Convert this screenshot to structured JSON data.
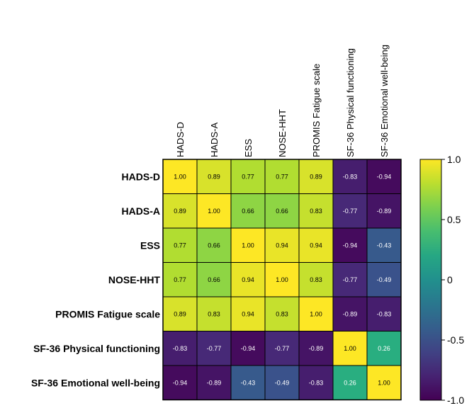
{
  "chart_data": {
    "type": "heatmap",
    "title": "",
    "columns": [
      "HADS-D",
      "HADS-A",
      "ESS",
      "NOSE-HHT",
      "PROMIS Fatigue scale",
      "SF-36 Physical functioning",
      "SF-36 Emotional well-being"
    ],
    "rows": [
      "HADS-D",
      "HADS-A",
      "ESS",
      "NOSE-HHT",
      "PROMIS Fatigue scale",
      "SF-36 Physical functioning",
      "SF-36 Emotional well-being"
    ],
    "value_labels": [
      [
        "1.00",
        "0.89",
        "0.77",
        "0.77",
        "0.89",
        "-0.83",
        "-0.94"
      ],
      [
        "0.89",
        "1.00",
        "0.66",
        "0.66",
        "0.83",
        "-0.77",
        "-0.89"
      ],
      [
        "0.77",
        "0.66",
        "1.00",
        "0.94",
        "0.94",
        "-0.94",
        "-0.43"
      ],
      [
        "0.77",
        "0.66",
        "0.94",
        "1.00",
        "0.83",
        "-0.77",
        "-0.49"
      ],
      [
        "0.89",
        "0.83",
        "0.94",
        "0.83",
        "1.00",
        "-0.89",
        "-0.83"
      ],
      [
        "-0.83",
        "-0.77",
        "-0.94",
        "-0.77",
        "-0.89",
        "1.00",
        "0.26"
      ],
      [
        "-0.94",
        "-0.89",
        "-0.43",
        "-0.49",
        "-0.83",
        "0.26",
        "1.00"
      ]
    ],
    "colorbar": {
      "range": [
        -1.0,
        1.0
      ],
      "colormap": "viridis",
      "tick_values": [
        1.0,
        0.5,
        0,
        -0.5,
        -1.0
      ],
      "tick_labels": [
        "1.0",
        "0.5",
        "0",
        "-0.5",
        "-1.0"
      ]
    },
    "legend_position": "right",
    "grid": true
  }
}
